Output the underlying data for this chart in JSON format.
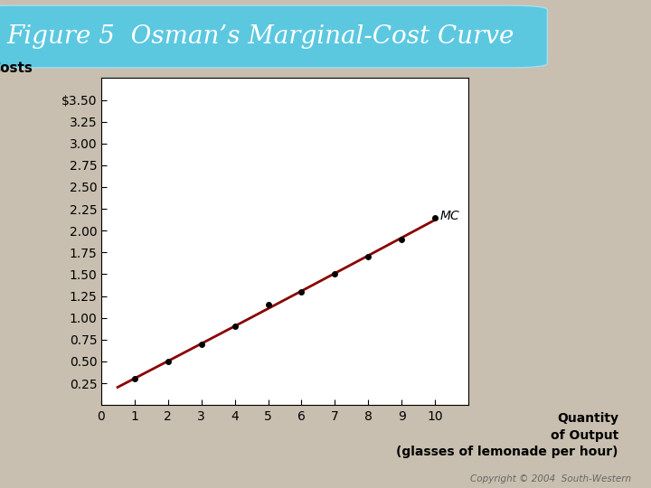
{
  "title": "Figure 5  Osman’s Marginal-Cost Curve",
  "ylabel": "Costs",
  "xlabel_line1": "Quantity",
  "xlabel_line2": "of Output",
  "xlabel_line3": "(glasses of lemonade per hour)",
  "copyright": "Copyright © 2004  South-Western",
  "mc_label": "MC",
  "x_data": [
    1,
    2,
    3,
    4,
    5,
    6,
    7,
    8,
    9,
    10
  ],
  "y_data": [
    0.3,
    0.5,
    0.7,
    0.9,
    1.15,
    1.3,
    1.5,
    1.7,
    1.9,
    2.15
  ],
  "xlim": [
    0,
    11
  ],
  "ylim": [
    0,
    3.75
  ],
  "yticks": [
    0.25,
    0.5,
    0.75,
    1.0,
    1.25,
    1.5,
    1.75,
    2.0,
    2.25,
    2.5,
    2.75,
    3.0,
    3.25,
    3.5
  ],
  "ytick_labels": [
    "0.25",
    "0.50",
    "0.75",
    "1.00",
    "1.25",
    "1.50",
    "1.75",
    "2.00",
    "2.25",
    "2.50",
    "2.75",
    "3.00",
    "3.25",
    "$3.50"
  ],
  "xticks": [
    0,
    1,
    2,
    3,
    4,
    5,
    6,
    7,
    8,
    9,
    10
  ],
  "line_color": "#8B0000",
  "dot_color": "#000000",
  "background_color": "#C8BFB0",
  "chart_bg": "#FFFFFF",
  "title_bg_top": "#5BC8E0",
  "title_bg_bot": "#1A8AAA",
  "title_text_color": "#FFFFFF",
  "title_fontsize": 20,
  "axis_label_fontsize": 10,
  "tick_fontsize": 9,
  "mc_fontsize": 10,
  "copyright_fontsize": 7.5
}
